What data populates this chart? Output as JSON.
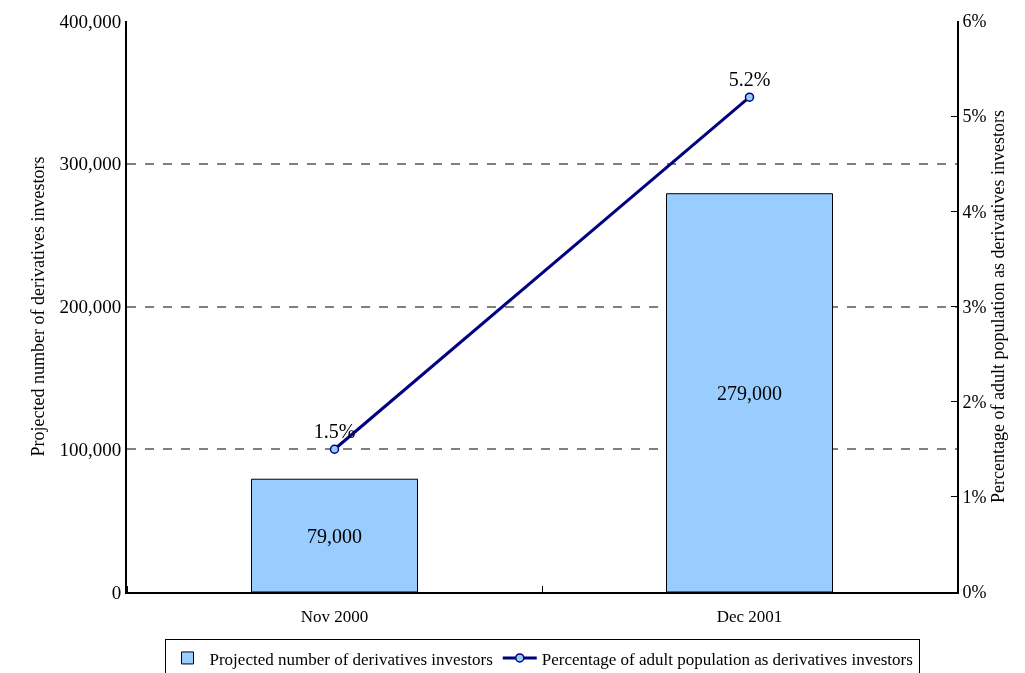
{
  "chart_data": {
    "type": "bar",
    "categories": [
      "Nov 2000",
      "Dec 2001"
    ],
    "ylabel": "Projected number of derivatives investors",
    "y2label": "Percentage of adult population as derivatives investors",
    "series": [
      {
        "name": "Projected number of derivatives investors",
        "color": "#99ccff",
        "values": [
          79000,
          279000
        ],
        "value_labels": [
          "79,000",
          "279,000"
        ]
      },
      {
        "name": "Percentage of adult population as derivatives investors",
        "type": "line",
        "axis": "y2",
        "color": "#000080",
        "marker": "circle",
        "values": [
          1.5,
          5.2
        ],
        "value_labels": [
          "1.5%",
          "5.2%"
        ]
      }
    ],
    "ylim": [
      0,
      400000
    ],
    "yticks": [
      0,
      {
        "value": 100000,
        "label": "100,000"
      },
      {
        "value": 200000,
        "label": "200,000"
      },
      {
        "value": 300000,
        "label": "300,000"
      },
      {
        "value": 400000,
        "label": "400,000"
      }
    ],
    "y2lim": [
      0,
      6
    ],
    "y2ticks": [
      {
        "value": 0,
        "label": "0%"
      },
      {
        "value": 1,
        "label": "1%"
      },
      {
        "value": 2,
        "label": "2%"
      },
      {
        "value": 3,
        "label": "3%"
      },
      {
        "value": 4,
        "label": "4%"
      },
      {
        "value": 5,
        "label": "5%"
      },
      {
        "value": 6,
        "label": "6%"
      }
    ],
    "grid": "y",
    "legend": "bottom"
  }
}
